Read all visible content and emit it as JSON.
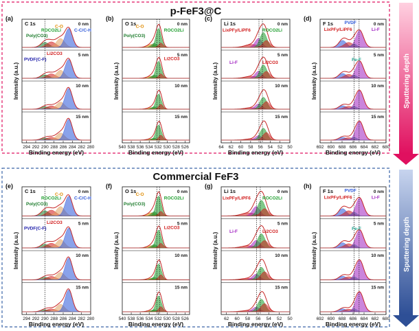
{
  "figure": {
    "sections": [
      {
        "title": "p-FeF3@C",
        "sputter_label": "Sputtering depth",
        "box_color": "#e0105f",
        "arrow_color": "#e0105f"
      },
      {
        "title": "Commercial FeF3",
        "sputter_label": "Sputtering depth",
        "box_color": "#3a64a8",
        "arrow_color": "#2e4f96"
      }
    ],
    "y_label": "Intensity (a.u.)",
    "x_label": "Binding energy (eV)",
    "depths": [
      "0 nm",
      "5 nm",
      "10 nm",
      "15 nm"
    ]
  },
  "chart_data": [
    {
      "type": "line",
      "panel": "(a)",
      "label": "C 1s",
      "xlim": [
        295,
        280
      ],
      "ticks": [
        294,
        292,
        290,
        288,
        286,
        284,
        282,
        280
      ],
      "annotations": [
        {
          "text": "C-O",
          "color": "#e08a00"
        },
        {
          "text": "ROCO2Li",
          "color": "#1a9c2a"
        },
        {
          "text": "C-C/C-H",
          "color": "#2a55d8"
        },
        {
          "text": "Poly(CO3)",
          "color": "#1a7a2a"
        },
        {
          "text": "Li2CO3",
          "color": "#d01818"
        },
        {
          "text": "PVDF(C-F)",
          "color": "#1a1aa8"
        }
      ]
    },
    {
      "type": "line",
      "panel": "(b)",
      "label": "O 1s",
      "xlim": [
        540,
        525
      ],
      "ticks": [
        540,
        538,
        536,
        534,
        532,
        530,
        528,
        526
      ],
      "annotations": [
        {
          "text": "C-O",
          "color": "#e08a00"
        },
        {
          "text": "ROCO2Li",
          "color": "#1a9c2a"
        },
        {
          "text": "Poly(CO3)",
          "color": "#1a7a2a"
        },
        {
          "text": "Li2CO3",
          "color": "#d01818"
        }
      ]
    },
    {
      "type": "line",
      "panel": "(c)",
      "label": "Li 1s",
      "xlim": [
        64,
        50
      ],
      "ticks": [
        64,
        62,
        60,
        58,
        56,
        54,
        52,
        50
      ],
      "annotations": [
        {
          "text": "LixPFy/LiPF6",
          "color": "#d01818"
        },
        {
          "text": "ROCO2Li",
          "color": "#1a9c2a"
        },
        {
          "text": "Li-F",
          "color": "#a020c0"
        },
        {
          "text": "Li2CO3",
          "color": "#d01818"
        }
      ]
    },
    {
      "type": "line",
      "panel": "(d)",
      "label": "F 1s",
      "xlim": [
        692,
        680
      ],
      "ticks": [
        692,
        690,
        688,
        686,
        684,
        682,
        680
      ],
      "annotations": [
        {
          "text": "PVDF",
          "color": "#2a55d8"
        },
        {
          "text": "LixPFy/LiPF6",
          "color": "#d01818"
        },
        {
          "text": "Li-F",
          "color": "#a020c0"
        },
        {
          "text": "Fe-F",
          "color": "#17a08a"
        }
      ]
    },
    {
      "type": "line",
      "panel": "(e)",
      "label": "C 1s",
      "xlim": [
        295,
        280
      ],
      "ticks": [
        294,
        292,
        290,
        288,
        286,
        284,
        282,
        280
      ],
      "annotations": [
        {
          "text": "C-O",
          "color": "#e08a00"
        },
        {
          "text": "ROCO2Li",
          "color": "#1a9c2a"
        },
        {
          "text": "C-C/C-H",
          "color": "#2a55d8"
        },
        {
          "text": "Poly(CO3)",
          "color": "#1a7a2a"
        },
        {
          "text": "Li2CO3",
          "color": "#d01818"
        },
        {
          "text": "PVDF(C-F)",
          "color": "#1a1aa8"
        }
      ]
    },
    {
      "type": "line",
      "panel": "(f)",
      "label": "O 1s",
      "xlim": [
        540,
        525
      ],
      "ticks": [
        540,
        538,
        536,
        534,
        532,
        530,
        528,
        526
      ],
      "annotations": [
        {
          "text": "C-O",
          "color": "#e08a00"
        },
        {
          "text": "ROCO2Li",
          "color": "#1a9c2a"
        },
        {
          "text": "Poly(CO3)",
          "color": "#1a7a2a"
        },
        {
          "text": "Li2CO3",
          "color": "#d01818"
        }
      ]
    },
    {
      "type": "line",
      "panel": "(g)",
      "label": "Li 1s",
      "xlim": [
        63,
        50
      ],
      "ticks": [
        62,
        60,
        58,
        56,
        54,
        52,
        50
      ],
      "annotations": [
        {
          "text": "LixPFy/LiPF6",
          "color": "#d01818"
        },
        {
          "text": "ROCO2Li",
          "color": "#1a9c2a"
        },
        {
          "text": "Li-F",
          "color": "#a020c0"
        },
        {
          "text": "Li2CO3",
          "color": "#d01818"
        }
      ]
    },
    {
      "type": "line",
      "panel": "(h)",
      "label": "F 1s",
      "xlim": [
        692,
        680
      ],
      "ticks": [
        692,
        690,
        688,
        686,
        684,
        682,
        680
      ],
      "annotations": [
        {
          "text": "PVDF",
          "color": "#2a55d8"
        },
        {
          "text": "LixPFy/LiPF6",
          "color": "#d01818"
        },
        {
          "text": "Li-F",
          "color": "#a020c0"
        },
        {
          "text": "Fe-F",
          "color": "#17a08a"
        }
      ]
    }
  ]
}
